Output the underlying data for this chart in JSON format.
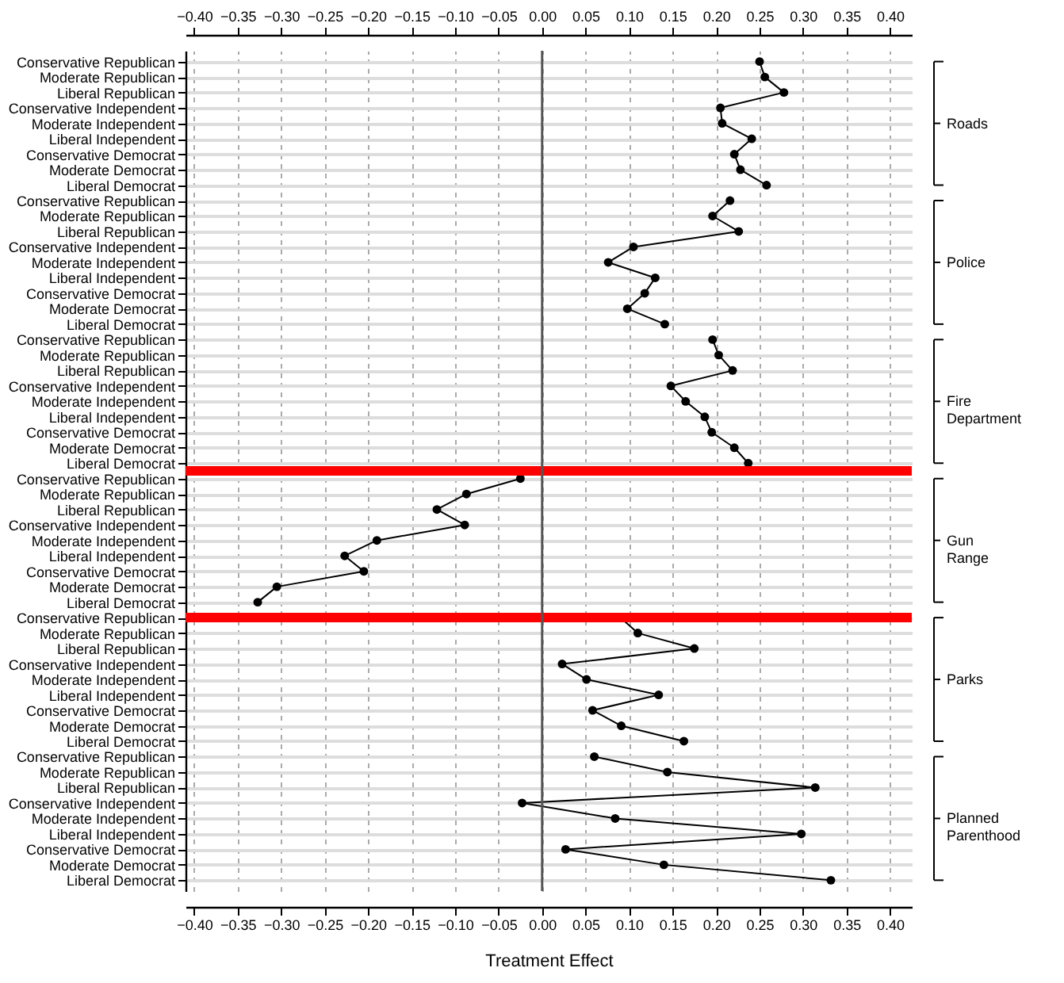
{
  "chart_data": {
    "type": "line",
    "orientation": "horizontal",
    "xlabel": "Treatment Effect",
    "categories": [
      "Conservative Republican",
      "Moderate Republican",
      "Liberal Republican",
      "Conservative Independent",
      "Moderate Independent",
      "Liberal Independent",
      "Conservative Democrat",
      "Moderate Democrat",
      "Liberal Democrat",
      "Conservative Republican",
      "Moderate Republican",
      "Liberal Republican",
      "Conservative Independent",
      "Moderate Independent",
      "Liberal Independent",
      "Conservative Democrat",
      "Moderate Democrat",
      "Liberal Democrat",
      "Conservative Republican",
      "Moderate Republican",
      "Liberal Republican",
      "Conservative Independent",
      "Moderate Independent",
      "Liberal Independent",
      "Conservative Democrat",
      "Moderate Democrat",
      "Liberal Democrat",
      "Conservative Republican",
      "Moderate Republican",
      "Liberal Republican",
      "Conservative Independent",
      "Moderate Independent",
      "Liberal Independent",
      "Conservative Democrat",
      "Moderate Democrat",
      "Liberal Democrat",
      "Conservative Republican",
      "Moderate Republican",
      "Liberal Republican",
      "Conservative Independent",
      "Moderate Independent",
      "Liberal Independent",
      "Conservative Democrat",
      "Moderate Democrat",
      "Liberal Democrat",
      "Conservative Republican",
      "Moderate Republican",
      "Liberal Republican",
      "Conservative Independent",
      "Moderate Independent",
      "Liberal Independent",
      "Conservative Democrat",
      "Moderate Democrat",
      "Liberal Democrat"
    ],
    "series": [
      {
        "name": "Roads",
        "color": "#000000",
        "values": [
          0.25,
          0.256,
          0.278,
          0.205,
          0.207,
          0.241,
          0.221,
          0.228,
          0.258,
          null,
          null,
          null,
          null,
          null,
          null,
          null,
          null,
          null,
          null,
          null,
          null,
          null,
          null,
          null,
          null,
          null,
          null,
          null,
          null,
          null,
          null,
          null,
          null,
          null,
          null,
          null,
          null,
          null,
          null,
          null,
          null,
          null,
          null,
          null,
          null,
          null,
          null,
          null,
          null,
          null,
          null,
          null,
          null,
          null
        ]
      },
      {
        "name": "Police",
        "color": "#000000",
        "values": [
          null,
          null,
          null,
          null,
          null,
          null,
          null,
          null,
          null,
          0.216,
          0.196,
          0.226,
          0.105,
          0.076,
          0.13,
          0.118,
          0.098,
          0.141,
          null,
          null,
          null,
          null,
          null,
          null,
          null,
          null,
          null,
          null,
          null,
          null,
          null,
          null,
          null,
          null,
          null,
          null,
          null,
          null,
          null,
          null,
          null,
          null,
          null,
          null,
          null,
          null,
          null,
          null,
          null,
          null,
          null,
          null,
          null,
          null
        ]
      },
      {
        "name": "Fire Department",
        "color": "#000000",
        "values": [
          null,
          null,
          null,
          null,
          null,
          null,
          null,
          null,
          null,
          null,
          null,
          null,
          null,
          null,
          null,
          null,
          null,
          null,
          0.196,
          0.203,
          0.219,
          0.148,
          0.165,
          0.187,
          0.195,
          0.221,
          0.237,
          null,
          null,
          null,
          null,
          null,
          null,
          null,
          null,
          null,
          null,
          null,
          null,
          null,
          null,
          null,
          null,
          null,
          null,
          null,
          null,
          null,
          null,
          null,
          null,
          null,
          null,
          null
        ]
      },
      {
        "name": "Gun Range",
        "color": "#000000",
        "values": [
          null,
          null,
          null,
          null,
          null,
          null,
          null,
          null,
          null,
          null,
          null,
          null,
          null,
          null,
          null,
          null,
          null,
          null,
          null,
          null,
          null,
          null,
          null,
          null,
          null,
          null,
          null,
          -0.025,
          -0.087,
          -0.121,
          -0.089,
          -0.19,
          -0.227,
          -0.205,
          -0.305,
          -0.327,
          null,
          null,
          null,
          null,
          null,
          null,
          null,
          null,
          null,
          null,
          null,
          null,
          null,
          null,
          null,
          null,
          null,
          null
        ]
      },
      {
        "name": "Parks",
        "color": "#000000",
        "values": [
          null,
          null,
          null,
          null,
          null,
          null,
          null,
          null,
          null,
          null,
          null,
          null,
          null,
          null,
          null,
          null,
          null,
          null,
          null,
          null,
          null,
          null,
          null,
          null,
          null,
          null,
          null,
          null,
          null,
          null,
          null,
          null,
          null,
          null,
          null,
          null,
          0.09,
          0.11,
          0.175,
          0.023,
          0.051,
          0.134,
          0.058,
          0.091,
          0.163,
          null,
          null,
          null,
          null,
          null,
          null,
          null,
          null,
          null
        ]
      },
      {
        "name": "Planned Parenthood",
        "color": "#000000",
        "values": [
          null,
          null,
          null,
          null,
          null,
          null,
          null,
          null,
          null,
          null,
          null,
          null,
          null,
          null,
          null,
          null,
          null,
          null,
          null,
          null,
          null,
          null,
          null,
          null,
          null,
          null,
          null,
          null,
          null,
          null,
          null,
          null,
          null,
          null,
          null,
          null,
          null,
          null,
          null,
          null,
          null,
          null,
          null,
          null,
          null,
          0.06,
          0.144,
          0.314,
          -0.023,
          0.084,
          0.298,
          0.027,
          0.14,
          0.332
        ]
      }
    ],
    "xlim": [
      -0.41,
      0.425
    ],
    "xticks": [
      {
        "value": -0.4,
        "label": "−0.40"
      },
      {
        "value": -0.35,
        "label": "−0.35"
      },
      {
        "value": -0.3,
        "label": "−0.30"
      },
      {
        "value": -0.25,
        "label": "−0.25"
      },
      {
        "value": -0.2,
        "label": "−0.20"
      },
      {
        "value": -0.15,
        "label": "−0.15"
      },
      {
        "value": -0.1,
        "label": "−0.10"
      },
      {
        "value": -0.05,
        "label": "−0.05"
      },
      {
        "value": 0,
        "label": "0.00"
      },
      {
        "value": 0.05,
        "label": "0.05"
      },
      {
        "value": 0.1,
        "label": "0.10"
      },
      {
        "value": 0.15,
        "label": "0.15"
      },
      {
        "value": 0.2,
        "label": "0.20"
      },
      {
        "value": 0.25,
        "label": "0.25"
      },
      {
        "value": 0.3,
        "label": "0.30"
      },
      {
        "value": 0.35,
        "label": "0.35"
      },
      {
        "value": 0.4,
        "label": "0.40"
      }
    ],
    "x2lim": [
      -0.41,
      0.425
    ],
    "x2ticks": [
      {
        "value": -0.4,
        "label": "−0.40"
      },
      {
        "value": -0.35,
        "label": "−0.35"
      },
      {
        "value": -0.3,
        "label": "−0.30"
      },
      {
        "value": -0.25,
        "label": "−0.25"
      },
      {
        "value": -0.2,
        "label": "−0.20"
      },
      {
        "value": -0.15,
        "label": "−0.15"
      },
      {
        "value": -0.1,
        "label": "−0.10"
      },
      {
        "value": -0.05,
        "label": "−0.05"
      },
      {
        "value": 0,
        "label": "0.00"
      },
      {
        "value": 0.05,
        "label": "0.05"
      },
      {
        "value": 0.1,
        "label": "0.10"
      },
      {
        "value": 0.15,
        "label": "0.15"
      },
      {
        "value": 0.2,
        "label": "0.20"
      },
      {
        "value": 0.25,
        "label": "0.25"
      },
      {
        "value": 0.3,
        "label": "0.30"
      },
      {
        "value": 0.35,
        "label": "0.35"
      },
      {
        "value": 0.4,
        "label": "0.40"
      }
    ],
    "ref_lines": [
      {
        "axis": "x",
        "value": 0,
        "color": "#555555"
      }
    ],
    "grid": true,
    "marker": "circle",
    "line_style": "solid",
    "legend": "right"
  }
}
